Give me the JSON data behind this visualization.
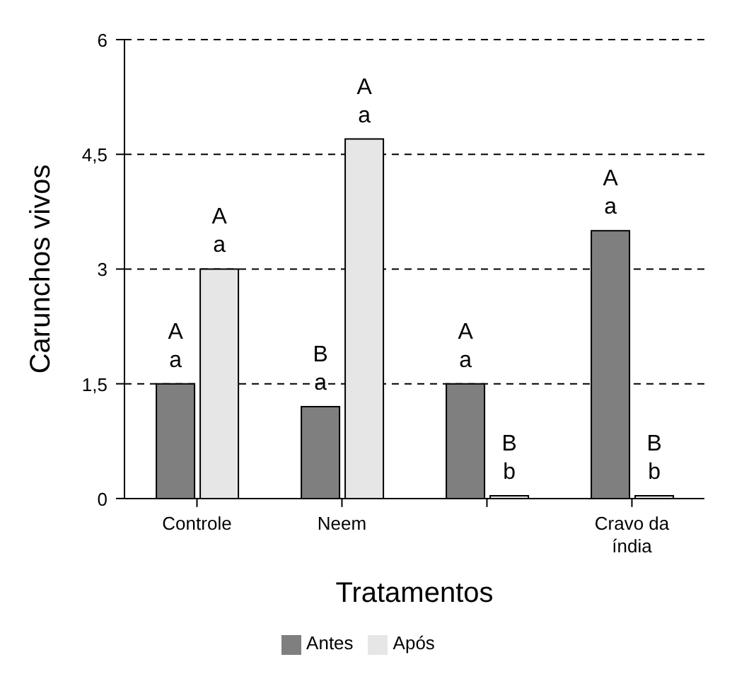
{
  "chart_data": {
    "type": "bar",
    "xlabel": "Tratamentos",
    "ylabel": "Carunchos vivos",
    "categories": [
      "Controle",
      "Neem",
      null,
      "Cravo da índia"
    ],
    "series": [
      {
        "name": "Antes",
        "color": "#7f7f7f",
        "values": [
          1.5,
          1.2,
          1.5,
          3.5
        ],
        "value_labels": [
          "A\na",
          "B\na",
          "A\na",
          "A\na"
        ]
      },
      {
        "name": "Após",
        "color": "#e6e6e6",
        "values": [
          3.0,
          4.7,
          0,
          0
        ],
        "value_labels": [
          "A\na",
          "A\na",
          "B\nb",
          "B\nb"
        ]
      }
    ],
    "ylim": [
      0,
      6
    ],
    "yticks": [
      0,
      {
        "value": 1.5,
        "label": "1,5"
      },
      3,
      {
        "value": 4.5,
        "label": "4,5"
      },
      6
    ],
    "grid": "y",
    "legend": "bottom"
  }
}
